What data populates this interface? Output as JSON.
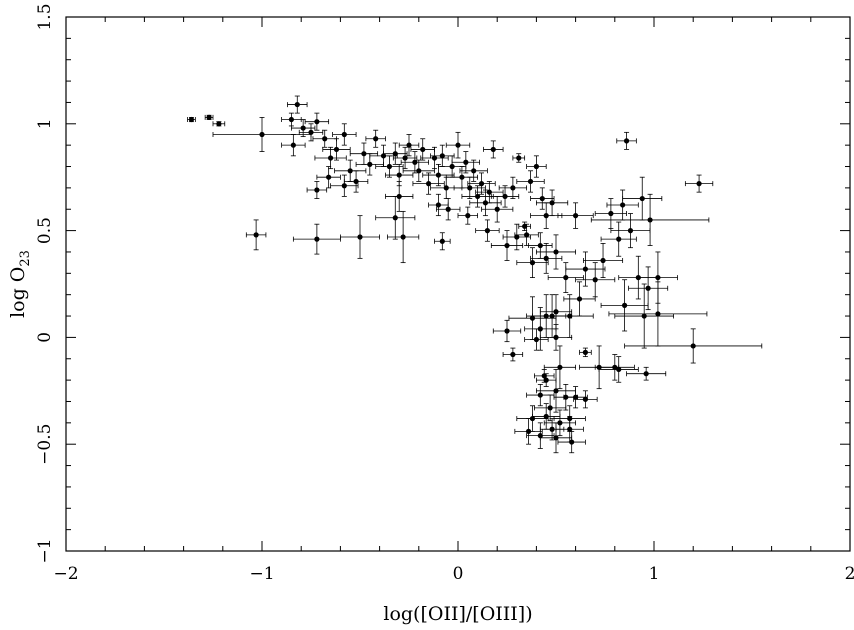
{
  "chart_data": {
    "type": "scatter",
    "title": "",
    "xlabel": "log([OII]/[OIII])",
    "ylabel": "log O23",
    "ylabel_main": "log O",
    "ylabel_sub": "23",
    "xlim": [
      -2,
      2
    ],
    "ylim": [
      -1,
      1.5
    ],
    "xticks": [
      -2,
      -1,
      0,
      1,
      2
    ],
    "yticks": [
      -1,
      -0.5,
      0,
      0.5,
      1,
      1.5
    ],
    "xtick_labels": [
      "−2",
      "−1",
      "0",
      "1",
      "2"
    ],
    "ytick_labels": [
      "−1",
      "−0.5",
      "0",
      "0.5",
      "1",
      "1.5"
    ],
    "grid": false,
    "marker_color": "#000000",
    "points": [
      {
        "x": -1.36,
        "y": 1.02,
        "xerr": 0.02,
        "yerr": 0.01
      },
      {
        "x": -1.27,
        "y": 1.03,
        "xerr": 0.02,
        "yerr": 0.01
      },
      {
        "x": -1.22,
        "y": 1.0,
        "xerr": 0.03,
        "yerr": 0.01
      },
      {
        "x": -1.0,
        "y": 0.95,
        "xerr": 0.25,
        "yerr": 0.08
      },
      {
        "x": -0.85,
        "y": 1.02,
        "xerr": 0.05,
        "yerr": 0.03
      },
      {
        "x": -0.82,
        "y": 1.09,
        "xerr": 0.05,
        "yerr": 0.04
      },
      {
        "x": -0.79,
        "y": 0.98,
        "xerr": 0.06,
        "yerr": 0.04
      },
      {
        "x": -0.84,
        "y": 0.9,
        "xerr": 0.06,
        "yerr": 0.05
      },
      {
        "x": -0.72,
        "y": 1.01,
        "xerr": 0.06,
        "yerr": 0.04
      },
      {
        "x": -0.75,
        "y": 0.96,
        "xerr": 0.06,
        "yerr": 0.04
      },
      {
        "x": -0.68,
        "y": 0.93,
        "xerr": 0.06,
        "yerr": 0.04
      },
      {
        "x": -0.62,
        "y": 0.88,
        "xerr": 0.07,
        "yerr": 0.05
      },
      {
        "x": -0.58,
        "y": 0.95,
        "xerr": 0.06,
        "yerr": 0.05
      },
      {
        "x": -0.65,
        "y": 0.84,
        "xerr": 0.08,
        "yerr": 0.05
      },
      {
        "x": -0.55,
        "y": 0.78,
        "xerr": 0.08,
        "yerr": 0.05
      },
      {
        "x": -0.72,
        "y": 0.69,
        "xerr": 0.05,
        "yerr": 0.04
      },
      {
        "x": -0.66,
        "y": 0.75,
        "xerr": 0.06,
        "yerr": 0.05
      },
      {
        "x": -0.58,
        "y": 0.71,
        "xerr": 0.07,
        "yerr": 0.05
      },
      {
        "x": -0.52,
        "y": 0.73,
        "xerr": 0.06,
        "yerr": 0.05
      },
      {
        "x": -0.48,
        "y": 0.86,
        "xerr": 0.07,
        "yerr": 0.05
      },
      {
        "x": -0.45,
        "y": 0.81,
        "xerr": 0.07,
        "yerr": 0.05
      },
      {
        "x": -0.42,
        "y": 0.93,
        "xerr": 0.05,
        "yerr": 0.04
      },
      {
        "x": -0.38,
        "y": 0.85,
        "xerr": 0.07,
        "yerr": 0.05
      },
      {
        "x": -0.35,
        "y": 0.8,
        "xerr": 0.07,
        "yerr": 0.05
      },
      {
        "x": -0.32,
        "y": 0.86,
        "xerr": 0.06,
        "yerr": 0.05
      },
      {
        "x": -0.3,
        "y": 0.76,
        "xerr": 0.07,
        "yerr": 0.05
      },
      {
        "x": -0.27,
        "y": 0.84,
        "xerr": 0.06,
        "yerr": 0.05
      },
      {
        "x": -0.25,
        "y": 0.9,
        "xerr": 0.05,
        "yerr": 0.05
      },
      {
        "x": -0.22,
        "y": 0.82,
        "xerr": 0.07,
        "yerr": 0.05
      },
      {
        "x": -0.2,
        "y": 0.78,
        "xerr": 0.08,
        "yerr": 0.05
      },
      {
        "x": -0.18,
        "y": 0.88,
        "xerr": 0.06,
        "yerr": 0.05
      },
      {
        "x": -0.15,
        "y": 0.72,
        "xerr": 0.08,
        "yerr": 0.05
      },
      {
        "x": -0.12,
        "y": 0.84,
        "xerr": 0.07,
        "yerr": 0.05
      },
      {
        "x": -0.1,
        "y": 0.76,
        "xerr": 0.08,
        "yerr": 0.05
      },
      {
        "x": -0.08,
        "y": 0.85,
        "xerr": 0.06,
        "yerr": 0.05
      },
      {
        "x": -0.06,
        "y": 0.7,
        "xerr": 0.08,
        "yerr": 0.05
      },
      {
        "x": -0.03,
        "y": 0.8,
        "xerr": 0.07,
        "yerr": 0.05
      },
      {
        "x": 0.0,
        "y": 0.9,
        "xerr": 0.06,
        "yerr": 0.06
      },
      {
        "x": 0.02,
        "y": 0.75,
        "xerr": 0.08,
        "yerr": 0.05
      },
      {
        "x": 0.04,
        "y": 0.82,
        "xerr": 0.07,
        "yerr": 0.05
      },
      {
        "x": 0.06,
        "y": 0.7,
        "xerr": 0.08,
        "yerr": 0.05
      },
      {
        "x": 0.08,
        "y": 0.78,
        "xerr": 0.07,
        "yerr": 0.05
      },
      {
        "x": 0.1,
        "y": 0.66,
        "xerr": 0.08,
        "yerr": 0.05
      },
      {
        "x": 0.12,
        "y": 0.72,
        "xerr": 0.07,
        "yerr": 0.05
      },
      {
        "x": 0.14,
        "y": 0.63,
        "xerr": 0.08,
        "yerr": 0.06
      },
      {
        "x": 0.16,
        "y": 0.68,
        "xerr": 0.07,
        "yerr": 0.05
      },
      {
        "x": 0.18,
        "y": 0.88,
        "xerr": 0.05,
        "yerr": 0.04
      },
      {
        "x": 0.2,
        "y": 0.6,
        "xerr": 0.08,
        "yerr": 0.06
      },
      {
        "x": 0.24,
        "y": 0.66,
        "xerr": 0.07,
        "yerr": 0.05
      },
      {
        "x": 0.28,
        "y": 0.7,
        "xerr": 0.07,
        "yerr": 0.05
      },
      {
        "x": 0.31,
        "y": 0.84,
        "xerr": 0.03,
        "yerr": 0.02
      },
      {
        "x": 0.34,
        "y": 0.52,
        "xerr": 0.03,
        "yerr": 0.02
      },
      {
        "x": 0.37,
        "y": 0.73,
        "xerr": 0.07,
        "yerr": 0.05
      },
      {
        "x": 0.4,
        "y": 0.8,
        "xerr": 0.05,
        "yerr": 0.05
      },
      {
        "x": 0.43,
        "y": 0.65,
        "xerr": 0.06,
        "yerr": 0.05
      },
      {
        "x": 0.45,
        "y": 0.57,
        "xerr": 0.08,
        "yerr": 0.06
      },
      {
        "x": 0.48,
        "y": 0.63,
        "xerr": 0.08,
        "yerr": 0.06
      },
      {
        "x": -0.72,
        "y": 0.46,
        "xerr": 0.12,
        "yerr": 0.07
      },
      {
        "x": -0.5,
        "y": 0.47,
        "xerr": 0.1,
        "yerr": 0.1
      },
      {
        "x": -0.32,
        "y": 0.56,
        "xerr": 0.1,
        "yerr": 0.1
      },
      {
        "x": -0.28,
        "y": 0.47,
        "xerr": 0.08,
        "yerr": 0.12
      },
      {
        "x": -0.08,
        "y": 0.45,
        "xerr": 0.04,
        "yerr": 0.04
      },
      {
        "x": -1.03,
        "y": 0.48,
        "xerr": 0.05,
        "yerr": 0.07
      },
      {
        "x": -0.3,
        "y": 0.66,
        "xerr": 0.07,
        "yerr": 0.07
      },
      {
        "x": -0.1,
        "y": 0.62,
        "xerr": 0.05,
        "yerr": 0.05
      },
      {
        "x": -0.05,
        "y": 0.6,
        "xerr": 0.06,
        "yerr": 0.05
      },
      {
        "x": 0.05,
        "y": 0.57,
        "xerr": 0.05,
        "yerr": 0.04
      },
      {
        "x": 0.15,
        "y": 0.5,
        "xerr": 0.06,
        "yerr": 0.05
      },
      {
        "x": 0.25,
        "y": 0.43,
        "xerr": 0.08,
        "yerr": 0.07
      },
      {
        "x": 0.3,
        "y": 0.47,
        "xerr": 0.07,
        "yerr": 0.06
      },
      {
        "x": 0.35,
        "y": 0.48,
        "xerr": 0.06,
        "yerr": 0.05
      },
      {
        "x": 0.42,
        "y": 0.43,
        "xerr": 0.06,
        "yerr": 0.06
      },
      {
        "x": 0.45,
        "y": 0.37,
        "xerr": 0.08,
        "yerr": 0.07
      },
      {
        "x": 0.5,
        "y": 0.4,
        "xerr": 0.1,
        "yerr": 0.08
      },
      {
        "x": 0.38,
        "y": 0.35,
        "xerr": 0.08,
        "yerr": 0.07
      },
      {
        "x": 0.55,
        "y": 0.28,
        "xerr": 0.09,
        "yerr": 0.07
      },
      {
        "x": 0.6,
        "y": 0.57,
        "xerr": 0.09,
        "yerr": 0.06
      },
      {
        "x": 0.65,
        "y": 0.32,
        "xerr": 0.1,
        "yerr": 0.08
      },
      {
        "x": 0.7,
        "y": 0.27,
        "xerr": 0.1,
        "yerr": 0.08
      },
      {
        "x": 0.74,
        "y": 0.36,
        "xerr": 0.1,
        "yerr": 0.08
      },
      {
        "x": 0.78,
        "y": 0.58,
        "xerr": 0.08,
        "yerr": 0.07
      },
      {
        "x": 0.82,
        "y": 0.46,
        "xerr": 0.09,
        "yerr": 0.08
      },
      {
        "x": 0.84,
        "y": 0.62,
        "xerr": 0.08,
        "yerr": 0.07
      },
      {
        "x": 0.88,
        "y": 0.5,
        "xerr": 0.1,
        "yerr": 0.08
      },
      {
        "x": 0.94,
        "y": 0.65,
        "xerr": 0.1,
        "yerr": 0.1
      },
      {
        "x": 0.98,
        "y": 0.55,
        "xerr": 0.3,
        "yerr": 0.12
      },
      {
        "x": 0.86,
        "y": 0.92,
        "xerr": 0.05,
        "yerr": 0.04
      },
      {
        "x": 1.23,
        "y": 0.72,
        "xerr": 0.07,
        "yerr": 0.04
      },
      {
        "x": 0.92,
        "y": 0.28,
        "xerr": 0.1,
        "yerr": 0.1
      },
      {
        "x": 0.97,
        "y": 0.23,
        "xerr": 0.1,
        "yerr": 0.1
      },
      {
        "x": 1.02,
        "y": 0.28,
        "xerr": 0.1,
        "yerr": 0.12
      },
      {
        "x": 0.62,
        "y": 0.18,
        "xerr": 0.08,
        "yerr": 0.08
      },
      {
        "x": 0.57,
        "y": 0.1,
        "xerr": 0.12,
        "yerr": 0.1
      },
      {
        "x": 0.85,
        "y": 0.15,
        "xerr": 0.12,
        "yerr": 0.12
      },
      {
        "x": 0.95,
        "y": 0.1,
        "xerr": 0.15,
        "yerr": 0.15
      },
      {
        "x": 1.02,
        "y": 0.11,
        "xerr": 0.25,
        "yerr": 0.15
      },
      {
        "x": 1.2,
        "y": -0.04,
        "xerr": 0.35,
        "yerr": 0.08
      },
      {
        "x": 0.25,
        "y": 0.03,
        "xerr": 0.07,
        "yerr": 0.05
      },
      {
        "x": 0.28,
        "y": -0.08,
        "xerr": 0.05,
        "yerr": 0.03
      },
      {
        "x": 0.38,
        "y": 0.09,
        "xerr": 0.12,
        "yerr": 0.1
      },
      {
        "x": 0.42,
        "y": 0.04,
        "xerr": 0.08,
        "yerr": 0.1
      },
      {
        "x": 0.45,
        "y": 0.1,
        "xerr": 0.1,
        "yerr": 0.1
      },
      {
        "x": 0.48,
        "y": 0.1,
        "xerr": 0.1,
        "yerr": 0.1
      },
      {
        "x": 0.5,
        "y": 0.12,
        "xerr": 0.08,
        "yerr": 0.08
      },
      {
        "x": 0.5,
        "y": 0.0,
        "xerr": 0.08,
        "yerr": 0.06
      },
      {
        "x": 0.4,
        "y": -0.01,
        "xerr": 0.06,
        "yerr": 0.05
      },
      {
        "x": 0.65,
        "y": -0.07,
        "xerr": 0.03,
        "yerr": 0.02
      },
      {
        "x": 0.72,
        "y": -0.14,
        "xerr": 0.1,
        "yerr": 0.1
      },
      {
        "x": 0.8,
        "y": -0.14,
        "xerr": 0.1,
        "yerr": 0.06
      },
      {
        "x": 0.82,
        "y": -0.15,
        "xerr": 0.1,
        "yerr": 0.06
      },
      {
        "x": 0.96,
        "y": -0.17,
        "xerr": 0.1,
        "yerr": 0.03
      },
      {
        "x": 0.44,
        "y": -0.18,
        "xerr": 0.05,
        "yerr": 0.03
      },
      {
        "x": 0.45,
        "y": -0.2,
        "xerr": 0.05,
        "yerr": 0.03
      },
      {
        "x": 0.42,
        "y": -0.27,
        "xerr": 0.07,
        "yerr": 0.05
      },
      {
        "x": 0.47,
        "y": -0.33,
        "xerr": 0.08,
        "yerr": 0.06
      },
      {
        "x": 0.5,
        "y": -0.25,
        "xerr": 0.1,
        "yerr": 0.1
      },
      {
        "x": 0.52,
        "y": -0.14,
        "xerr": 0.08,
        "yerr": 0.1
      },
      {
        "x": 0.55,
        "y": -0.28,
        "xerr": 0.06,
        "yerr": 0.06
      },
      {
        "x": 0.6,
        "y": -0.28,
        "xerr": 0.06,
        "yerr": 0.05
      },
      {
        "x": 0.65,
        "y": -0.29,
        "xerr": 0.06,
        "yerr": 0.04
      },
      {
        "x": 0.38,
        "y": -0.38,
        "xerr": 0.08,
        "yerr": 0.06
      },
      {
        "x": 0.45,
        "y": -0.37,
        "xerr": 0.07,
        "yerr": 0.06
      },
      {
        "x": 0.52,
        "y": -0.4,
        "xerr": 0.08,
        "yerr": 0.06
      },
      {
        "x": 0.57,
        "y": -0.38,
        "xerr": 0.08,
        "yerr": 0.06
      },
      {
        "x": 0.36,
        "y": -0.44,
        "xerr": 0.07,
        "yerr": 0.06
      },
      {
        "x": 0.42,
        "y": -0.46,
        "xerr": 0.07,
        "yerr": 0.06
      },
      {
        "x": 0.5,
        "y": -0.47,
        "xerr": 0.08,
        "yerr": 0.07
      },
      {
        "x": 0.57,
        "y": -0.43,
        "xerr": 0.07,
        "yerr": 0.06
      },
      {
        "x": 0.58,
        "y": -0.49,
        "xerr": 0.07,
        "yerr": 0.05
      },
      {
        "x": 0.48,
        "y": -0.43,
        "xerr": 0.06,
        "yerr": 0.05
      }
    ]
  }
}
